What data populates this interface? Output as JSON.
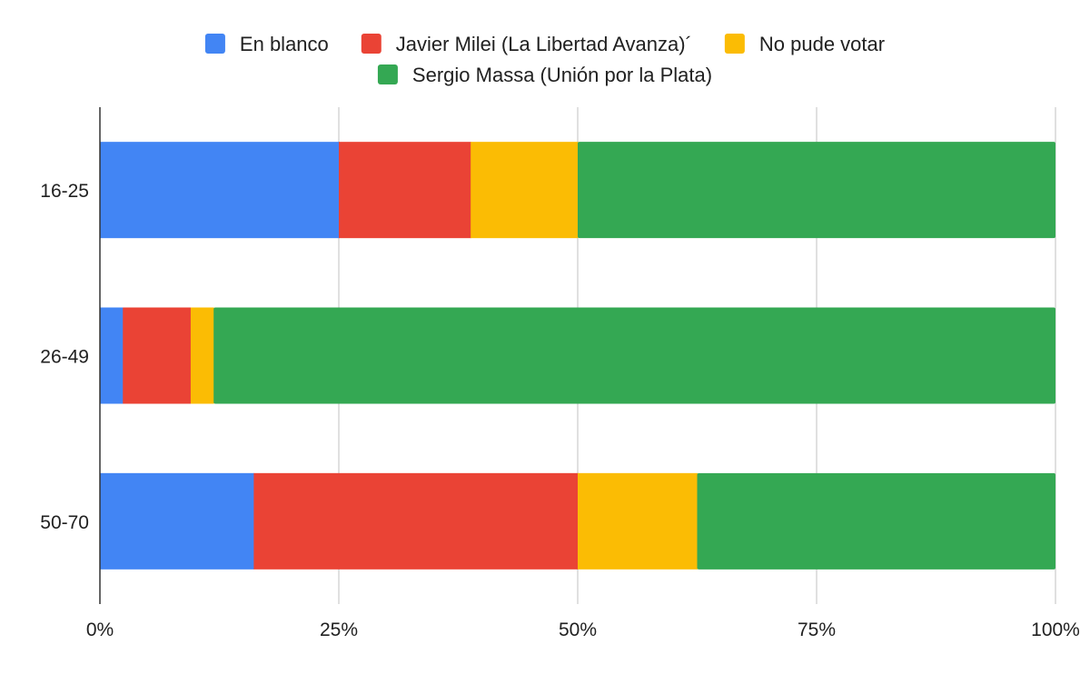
{
  "chart_data": {
    "type": "bar",
    "orientation": "horizontal",
    "stacked": "percent",
    "categories": [
      "16-25",
      "26-49",
      "50-70"
    ],
    "series": [
      {
        "name": "En blanco",
        "color": "#4285f4",
        "values": [
          25.0,
          2.4,
          16.1
        ]
      },
      {
        "name": "Javier Milei (La Libertad Avanza)´",
        "color": "#ea4335",
        "values": [
          13.8,
          7.1,
          33.9
        ]
      },
      {
        "name": "No pude votar",
        "color": "#fbbc04",
        "values": [
          11.2,
          2.4,
          12.5
        ]
      },
      {
        "name": "Sergio Massa (Unión por la Plata)",
        "color": "#34a853",
        "values": [
          50.0,
          88.1,
          37.5
        ]
      }
    ],
    "xticks": [
      "0%",
      "25%",
      "50%",
      "75%",
      "100%"
    ],
    "xlim": [
      0,
      100
    ],
    "grid": true,
    "legend_position": "top"
  }
}
